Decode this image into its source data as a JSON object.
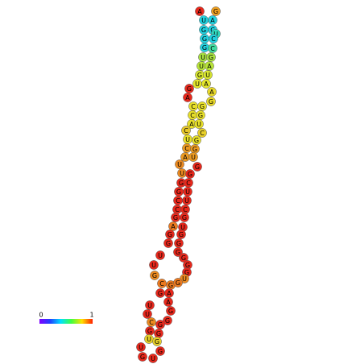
{
  "legend": {
    "min": "0",
    "max": "1"
  },
  "nodes": [
    {
      "label": "A",
      "color": "#e8281c"
    },
    {
      "label": "G",
      "color": "#f0a020"
    },
    {
      "label": "U",
      "color": "#22d2e0"
    },
    {
      "label": "A",
      "color": "#22d2e0"
    },
    {
      "label": "G",
      "color": "#22d2e0"
    },
    {
      "label": "C",
      "color": "#22d2e0"
    },
    {
      "label": "U",
      "color": "#30dcc0"
    },
    {
      "label": "G",
      "color": "#22d2e0"
    },
    {
      "label": "C",
      "color": "#22d2e0"
    },
    {
      "label": "G",
      "color": "#22d2e0"
    },
    {
      "label": "C",
      "color": "#40dca0"
    },
    {
      "label": "U",
      "color": "#a8e040"
    },
    {
      "label": "G",
      "color": "#a8e040"
    },
    {
      "label": "U",
      "color": "#b8e438"
    },
    {
      "label": "A",
      "color": "#b8e438"
    },
    {
      "label": "G",
      "color": "#d8e630"
    },
    {
      "label": "U",
      "color": "#d8e630"
    },
    {
      "label": "U",
      "color": "#e4e62c"
    },
    {
      "label": "A",
      "color": "#e4e62c"
    },
    {
      "label": "G",
      "color": "#e8281c"
    },
    {
      "label": "A",
      "color": "#e8d82a"
    },
    {
      "label": "A",
      "color": "#e8281c"
    },
    {
      "label": "G",
      "color": "#e8d82a"
    },
    {
      "label": "C",
      "color": "#e8e02a"
    },
    {
      "label": "G",
      "color": "#e8e02a"
    },
    {
      "label": "C",
      "color": "#e8e02a"
    },
    {
      "label": "G",
      "color": "#e8e02a"
    },
    {
      "label": "A",
      "color": "#e8e02a"
    },
    {
      "label": "U",
      "color": "#e8e02a"
    },
    {
      "label": "C",
      "color": "#e8c82a"
    },
    {
      "label": "C",
      "color": "#e8d02a"
    },
    {
      "label": "U",
      "color": "#e8e02a"
    },
    {
      "label": "G",
      "color": "#e8e02a"
    },
    {
      "label": "C",
      "color": "#ec9a22"
    },
    {
      "label": "G",
      "color": "#ec9a22"
    },
    {
      "label": "A",
      "color": "#ec9a22"
    },
    {
      "label": "U",
      "color": "#ec9a22"
    },
    {
      "label": "U",
      "color": "#ec8a20"
    },
    {
      "label": "G",
      "color": "#e8281c"
    },
    {
      "label": "U",
      "color": "#ec8a20"
    },
    {
      "label": "G",
      "color": "#e8281c"
    },
    {
      "label": "G",
      "color": "#e8281c"
    },
    {
      "label": "C",
      "color": "#e8281c"
    },
    {
      "label": "G",
      "color": "#e8281c"
    },
    {
      "label": "U",
      "color": "#e8281c"
    },
    {
      "label": "C",
      "color": "#e8281c"
    },
    {
      "label": "U",
      "color": "#e8281c"
    },
    {
      "label": "C",
      "color": "#e8281c"
    },
    {
      "label": "C",
      "color": "#e8281c"
    },
    {
      "label": "G",
      "color": "#e8281c"
    },
    {
      "label": "G",
      "color": "#e8281c"
    },
    {
      "label": "A",
      "color": "#ec7a20"
    },
    {
      "label": "U",
      "color": "#e8281c"
    },
    {
      "label": "G",
      "color": "#e8281c"
    },
    {
      "label": "G",
      "color": "#e8281c"
    },
    {
      "label": "G",
      "color": "#e8281c"
    },
    {
      "label": "G",
      "color": "#e8281c"
    },
    {
      "label": "U",
      "color": "#e8281c"
    },
    {
      "label": "G",
      "color": "#e8281c"
    },
    {
      "label": "U",
      "color": "#e8281c"
    },
    {
      "label": "G",
      "color": "#e8281c"
    },
    {
      "label": "G",
      "color": "#ec8a20"
    },
    {
      "label": "G",
      "color": "#e8281c"
    },
    {
      "label": "C",
      "color": "#ec7a20"
    },
    {
      "label": "G",
      "color": "#e8281c"
    },
    {
      "label": "G",
      "color": "#ec7a20"
    },
    {
      "label": "U",
      "color": "#ec8a20"
    },
    {
      "label": "G",
      "color": "#ec7a20"
    },
    {
      "label": "G",
      "color": "#e8281c"
    },
    {
      "label": "A",
      "color": "#e8281c"
    },
    {
      "label": "U",
      "color": "#e8281c"
    },
    {
      "label": "A",
      "color": "#e8281c"
    },
    {
      "label": "U",
      "color": "#e8281c"
    },
    {
      "label": "G",
      "color": "#e8281c"
    },
    {
      "label": "C",
      "color": "#ec8a20"
    },
    {
      "label": "G",
      "color": "#e8281c"
    },
    {
      "label": "G",
      "color": "#e8281c"
    },
    {
      "label": "G",
      "color": "#e8281c"
    },
    {
      "label": "U",
      "color": "#e8d02a"
    },
    {
      "label": "G",
      "color": "#e8281c"
    },
    {
      "label": "G",
      "color": "#e8d02a"
    },
    {
      "label": "U",
      "color": "#e8281c"
    },
    {
      "label": "G",
      "color": "#e8281c"
    },
    {
      "label": "G",
      "color": "#e8281c"
    },
    {
      "label": "U",
      "color": "#e8281c"
    }
  ]
}
